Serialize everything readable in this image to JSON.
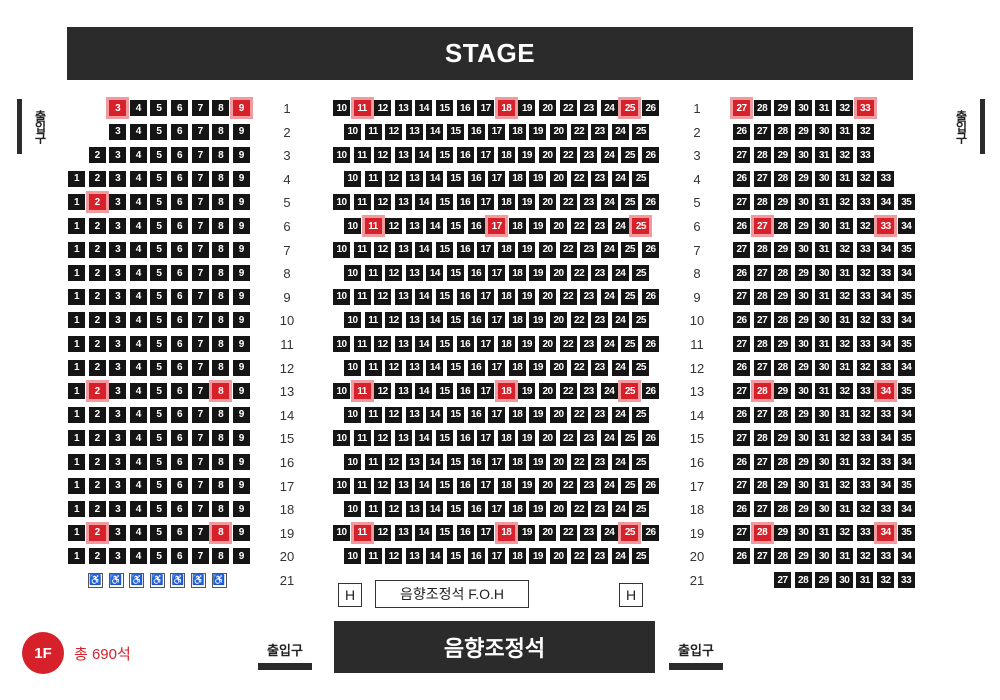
{
  "stage_label": "STAGE",
  "exits": {
    "side_left": "출입구",
    "side_right": "출입구",
    "bottom_left": "출입구",
    "bottom_right": "출입구"
  },
  "foh": {
    "h_left": "H",
    "h_right": "H",
    "label": "음향조정석 F.O.H"
  },
  "mixer_label": "음향조정석",
  "floor": {
    "badge": "1F",
    "total": "총 690석"
  },
  "colors": {
    "seat": "#151515",
    "selected_seat": "#d6202a",
    "selected_ring": "#f19aa0",
    "stage": "#2b2b2b"
  },
  "wheelchair": {
    "icon": "wheelchair-icon",
    "count": 7
  },
  "seating": {
    "left_section": [
      {
        "row": 1,
        "seats": [
          3,
          4,
          5,
          6,
          7,
          8,
          9
        ],
        "selected": [
          3,
          9
        ]
      },
      {
        "row": 2,
        "seats": [
          3,
          4,
          5,
          6,
          7,
          8,
          9
        ],
        "selected": []
      },
      {
        "row": 3,
        "seats": [
          2,
          3,
          4,
          5,
          6,
          7,
          8,
          9
        ],
        "selected": []
      },
      {
        "row": 4,
        "seats": [
          1,
          2,
          3,
          4,
          5,
          6,
          7,
          8,
          9
        ],
        "selected": []
      },
      {
        "row": 5,
        "seats": [
          1,
          2,
          3,
          4,
          5,
          6,
          7,
          8,
          9
        ],
        "selected": [
          2
        ]
      },
      {
        "row": 6,
        "seats": [
          1,
          2,
          3,
          4,
          5,
          6,
          7,
          8,
          9
        ],
        "selected": []
      },
      {
        "row": 7,
        "seats": [
          1,
          2,
          3,
          4,
          5,
          6,
          7,
          8,
          9
        ],
        "selected": []
      },
      {
        "row": 8,
        "seats": [
          1,
          2,
          3,
          4,
          5,
          6,
          7,
          8,
          9
        ],
        "selected": []
      },
      {
        "row": 9,
        "seats": [
          1,
          2,
          3,
          4,
          5,
          6,
          7,
          8,
          9
        ],
        "selected": []
      },
      {
        "row": 10,
        "seats": [
          1,
          2,
          3,
          4,
          5,
          6,
          7,
          8,
          9
        ],
        "selected": []
      },
      {
        "row": 11,
        "seats": [
          1,
          2,
          3,
          4,
          5,
          6,
          7,
          8,
          9
        ],
        "selected": []
      },
      {
        "row": 12,
        "seats": [
          1,
          2,
          3,
          4,
          5,
          6,
          7,
          8,
          9
        ],
        "selected": []
      },
      {
        "row": 13,
        "seats": [
          1,
          2,
          3,
          4,
          5,
          6,
          7,
          8,
          9
        ],
        "selected": [
          2,
          8
        ]
      },
      {
        "row": 14,
        "seats": [
          1,
          2,
          3,
          4,
          5,
          6,
          7,
          8,
          9
        ],
        "selected": []
      },
      {
        "row": 15,
        "seats": [
          1,
          2,
          3,
          4,
          5,
          6,
          7,
          8,
          9
        ],
        "selected": []
      },
      {
        "row": 16,
        "seats": [
          1,
          2,
          3,
          4,
          5,
          6,
          7,
          8,
          9
        ],
        "selected": []
      },
      {
        "row": 17,
        "seats": [
          1,
          2,
          3,
          4,
          5,
          6,
          7,
          8,
          9
        ],
        "selected": []
      },
      {
        "row": 18,
        "seats": [
          1,
          2,
          3,
          4,
          5,
          6,
          7,
          8,
          9
        ],
        "selected": []
      },
      {
        "row": 19,
        "seats": [
          1,
          2,
          3,
          4,
          5,
          6,
          7,
          8,
          9
        ],
        "selected": [
          2,
          8
        ]
      },
      {
        "row": 20,
        "seats": [
          1,
          2,
          3,
          4,
          5,
          6,
          7,
          8,
          9
        ],
        "selected": []
      }
    ],
    "center_section": [
      {
        "row": 1,
        "seats": [
          10,
          11,
          12,
          13,
          14,
          15,
          16,
          17,
          18,
          19,
          20,
          22,
          23,
          24,
          25,
          26
        ],
        "selected": [
          11,
          18,
          25
        ]
      },
      {
        "row": 2,
        "seats": [
          10,
          11,
          12,
          13,
          14,
          15,
          16,
          17,
          18,
          19,
          20,
          22,
          23,
          24,
          25
        ],
        "selected": []
      },
      {
        "row": 3,
        "seats": [
          10,
          11,
          12,
          13,
          14,
          15,
          16,
          17,
          18,
          19,
          20,
          22,
          23,
          24,
          25,
          26
        ],
        "selected": []
      },
      {
        "row": 4,
        "seats": [
          10,
          11,
          12,
          13,
          14,
          15,
          16,
          17,
          18,
          19,
          20,
          22,
          23,
          24,
          25
        ],
        "selected": []
      },
      {
        "row": 5,
        "seats": [
          10,
          11,
          12,
          13,
          14,
          15,
          16,
          17,
          18,
          19,
          20,
          22,
          23,
          24,
          25,
          26
        ],
        "selected": []
      },
      {
        "row": 6,
        "seats": [
          10,
          11,
          12,
          13,
          14,
          15,
          16,
          17,
          18,
          19,
          20,
          22,
          23,
          24,
          25
        ],
        "selected": [
          11,
          17,
          25
        ]
      },
      {
        "row": 7,
        "seats": [
          10,
          11,
          12,
          13,
          14,
          15,
          16,
          17,
          18,
          19,
          20,
          22,
          23,
          24,
          25,
          26
        ],
        "selected": []
      },
      {
        "row": 8,
        "seats": [
          10,
          11,
          12,
          13,
          14,
          15,
          16,
          17,
          18,
          19,
          20,
          22,
          23,
          24,
          25
        ],
        "selected": []
      },
      {
        "row": 9,
        "seats": [
          10,
          11,
          12,
          13,
          14,
          15,
          16,
          17,
          18,
          19,
          20,
          22,
          23,
          24,
          25,
          26
        ],
        "selected": []
      },
      {
        "row": 10,
        "seats": [
          10,
          11,
          12,
          13,
          14,
          15,
          16,
          17,
          18,
          19,
          20,
          22,
          23,
          24,
          25
        ],
        "selected": []
      },
      {
        "row": 11,
        "seats": [
          10,
          11,
          12,
          13,
          14,
          15,
          16,
          17,
          18,
          19,
          20,
          22,
          23,
          24,
          25,
          26
        ],
        "selected": []
      },
      {
        "row": 12,
        "seats": [
          10,
          11,
          12,
          13,
          14,
          15,
          16,
          17,
          18,
          19,
          20,
          22,
          23,
          24,
          25
        ],
        "selected": []
      },
      {
        "row": 13,
        "seats": [
          10,
          11,
          12,
          13,
          14,
          15,
          16,
          17,
          18,
          19,
          20,
          22,
          23,
          24,
          25,
          26
        ],
        "selected": [
          11,
          18,
          25
        ]
      },
      {
        "row": 14,
        "seats": [
          10,
          11,
          12,
          13,
          14,
          15,
          16,
          17,
          18,
          19,
          20,
          22,
          23,
          24,
          25
        ],
        "selected": []
      },
      {
        "row": 15,
        "seats": [
          10,
          11,
          12,
          13,
          14,
          15,
          16,
          17,
          18,
          19,
          20,
          22,
          23,
          24,
          25,
          26
        ],
        "selected": []
      },
      {
        "row": 16,
        "seats": [
          10,
          11,
          12,
          13,
          14,
          15,
          16,
          17,
          18,
          19,
          20,
          22,
          23,
          24,
          25
        ],
        "selected": []
      },
      {
        "row": 17,
        "seats": [
          10,
          11,
          12,
          13,
          14,
          15,
          16,
          17,
          18,
          19,
          20,
          22,
          23,
          24,
          25,
          26
        ],
        "selected": []
      },
      {
        "row": 18,
        "seats": [
          10,
          11,
          12,
          13,
          14,
          15,
          16,
          17,
          18,
          19,
          20,
          22,
          23,
          24,
          25
        ],
        "selected": []
      },
      {
        "row": 19,
        "seats": [
          10,
          11,
          12,
          13,
          14,
          15,
          16,
          17,
          18,
          19,
          20,
          22,
          23,
          24,
          25,
          26
        ],
        "selected": [
          11,
          18,
          25
        ]
      },
      {
        "row": 20,
        "seats": [
          10,
          11,
          12,
          13,
          14,
          15,
          16,
          17,
          18,
          19,
          20,
          22,
          23,
          24,
          25
        ],
        "selected": []
      }
    ],
    "right_section": [
      {
        "row": 1,
        "seats": [
          27,
          28,
          29,
          30,
          31,
          32,
          33
        ],
        "selected": [
          27,
          33
        ]
      },
      {
        "row": 2,
        "seats": [
          26,
          27,
          28,
          29,
          30,
          31,
          32
        ],
        "selected": []
      },
      {
        "row": 3,
        "seats": [
          27,
          28,
          29,
          30,
          31,
          32,
          33
        ],
        "selected": []
      },
      {
        "row": 4,
        "seats": [
          26,
          27,
          28,
          29,
          30,
          31,
          32,
          33
        ],
        "selected": []
      },
      {
        "row": 5,
        "seats": [
          27,
          28,
          29,
          30,
          31,
          32,
          33,
          34,
          35
        ],
        "selected": []
      },
      {
        "row": 6,
        "seats": [
          26,
          27,
          28,
          29,
          30,
          31,
          32,
          33,
          34
        ],
        "selected": [
          27,
          33
        ]
      },
      {
        "row": 7,
        "seats": [
          27,
          28,
          29,
          30,
          31,
          32,
          33,
          34,
          35
        ],
        "selected": []
      },
      {
        "row": 8,
        "seats": [
          26,
          27,
          28,
          29,
          30,
          31,
          32,
          33,
          34
        ],
        "selected": []
      },
      {
        "row": 9,
        "seats": [
          27,
          28,
          29,
          30,
          31,
          32,
          33,
          34,
          35
        ],
        "selected": []
      },
      {
        "row": 10,
        "seats": [
          26,
          27,
          28,
          29,
          30,
          31,
          32,
          33,
          34
        ],
        "selected": []
      },
      {
        "row": 11,
        "seats": [
          27,
          28,
          29,
          30,
          31,
          32,
          33,
          34,
          35
        ],
        "selected": []
      },
      {
        "row": 12,
        "seats": [
          26,
          27,
          28,
          29,
          30,
          31,
          32,
          33,
          34
        ],
        "selected": []
      },
      {
        "row": 13,
        "seats": [
          27,
          28,
          29,
          30,
          31,
          32,
          33,
          34,
          35
        ],
        "selected": [
          28,
          34
        ]
      },
      {
        "row": 14,
        "seats": [
          26,
          27,
          28,
          29,
          30,
          31,
          32,
          33,
          34
        ],
        "selected": []
      },
      {
        "row": 15,
        "seats": [
          27,
          28,
          29,
          30,
          31,
          32,
          33,
          34,
          35
        ],
        "selected": []
      },
      {
        "row": 16,
        "seats": [
          26,
          27,
          28,
          29,
          30,
          31,
          32,
          33,
          34
        ],
        "selected": []
      },
      {
        "row": 17,
        "seats": [
          27,
          28,
          29,
          30,
          31,
          32,
          33,
          34,
          35
        ],
        "selected": []
      },
      {
        "row": 18,
        "seats": [
          26,
          27,
          28,
          29,
          30,
          31,
          32,
          33,
          34
        ],
        "selected": []
      },
      {
        "row": 19,
        "seats": [
          27,
          28,
          29,
          30,
          31,
          32,
          33,
          34,
          35
        ],
        "selected": [
          28,
          34
        ]
      },
      {
        "row": 20,
        "seats": [
          26,
          27,
          28,
          29,
          30,
          31,
          32,
          33,
          34
        ],
        "selected": []
      },
      {
        "row": 21,
        "seats": [
          27,
          28,
          29,
          30,
          31,
          32,
          33
        ],
        "selected": []
      }
    ],
    "row_labels_left": [
      "1",
      "2",
      "3",
      "4",
      "5",
      "6",
      "7",
      "8",
      "9",
      "10",
      "11",
      "12",
      "13",
      "14",
      "15",
      "16",
      "17",
      "18",
      "19",
      "20",
      "21"
    ],
    "row_labels_right": [
      "1",
      "2",
      "3",
      "4",
      "5",
      "6",
      "7",
      "8",
      "9",
      "10",
      "11",
      "12",
      "13",
      "14",
      "15",
      "16",
      "17",
      "18",
      "19",
      "20",
      "21"
    ]
  }
}
